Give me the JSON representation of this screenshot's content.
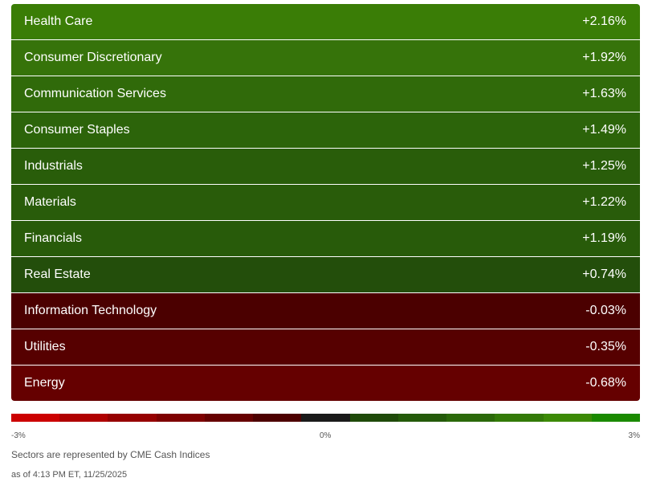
{
  "sectors": [
    {
      "name": "Health Care",
      "change": "+2.16%",
      "color": "#3a7d06"
    },
    {
      "name": "Consumer Discretionary",
      "change": "+1.92%",
      "color": "#36730a"
    },
    {
      "name": "Communication Services",
      "change": "+1.63%",
      "color": "#306a0a"
    },
    {
      "name": "Consumer Staples",
      "change": "+1.49%",
      "color": "#2c640a"
    },
    {
      "name": "Industrials",
      "change": "+1.25%",
      "color": "#295d0a"
    },
    {
      "name": "Materials",
      "change": "+1.22%",
      "color": "#295c0a"
    },
    {
      "name": "Financials",
      "change": "+1.19%",
      "color": "#285b0a"
    },
    {
      "name": "Real Estate",
      "change": "+0.74%",
      "color": "#234e0b"
    },
    {
      "name": "Information Technology",
      "change": "-0.03%",
      "color": "#4b0000"
    },
    {
      "name": "Utilities",
      "change": "-0.35%",
      "color": "#560000"
    },
    {
      "name": "Energy",
      "change": "-0.68%",
      "color": "#650000"
    }
  ],
  "scale": {
    "min_label": "-3%",
    "mid_label": "0%",
    "max_label": "3%",
    "colors": [
      "#cc0000",
      "#b00000",
      "#960000",
      "#7e0000",
      "#660000",
      "#4d0000",
      "#1a1a1a",
      "#1f4a0a",
      "#245a0a",
      "#2b690a",
      "#337a08",
      "#3c8a06",
      "#1a8a00"
    ]
  },
  "footer": {
    "source_note": "Sectors are represented by CME Cash Indices",
    "timestamp": "as of 4:13 PM ET, 11/25/2025"
  }
}
